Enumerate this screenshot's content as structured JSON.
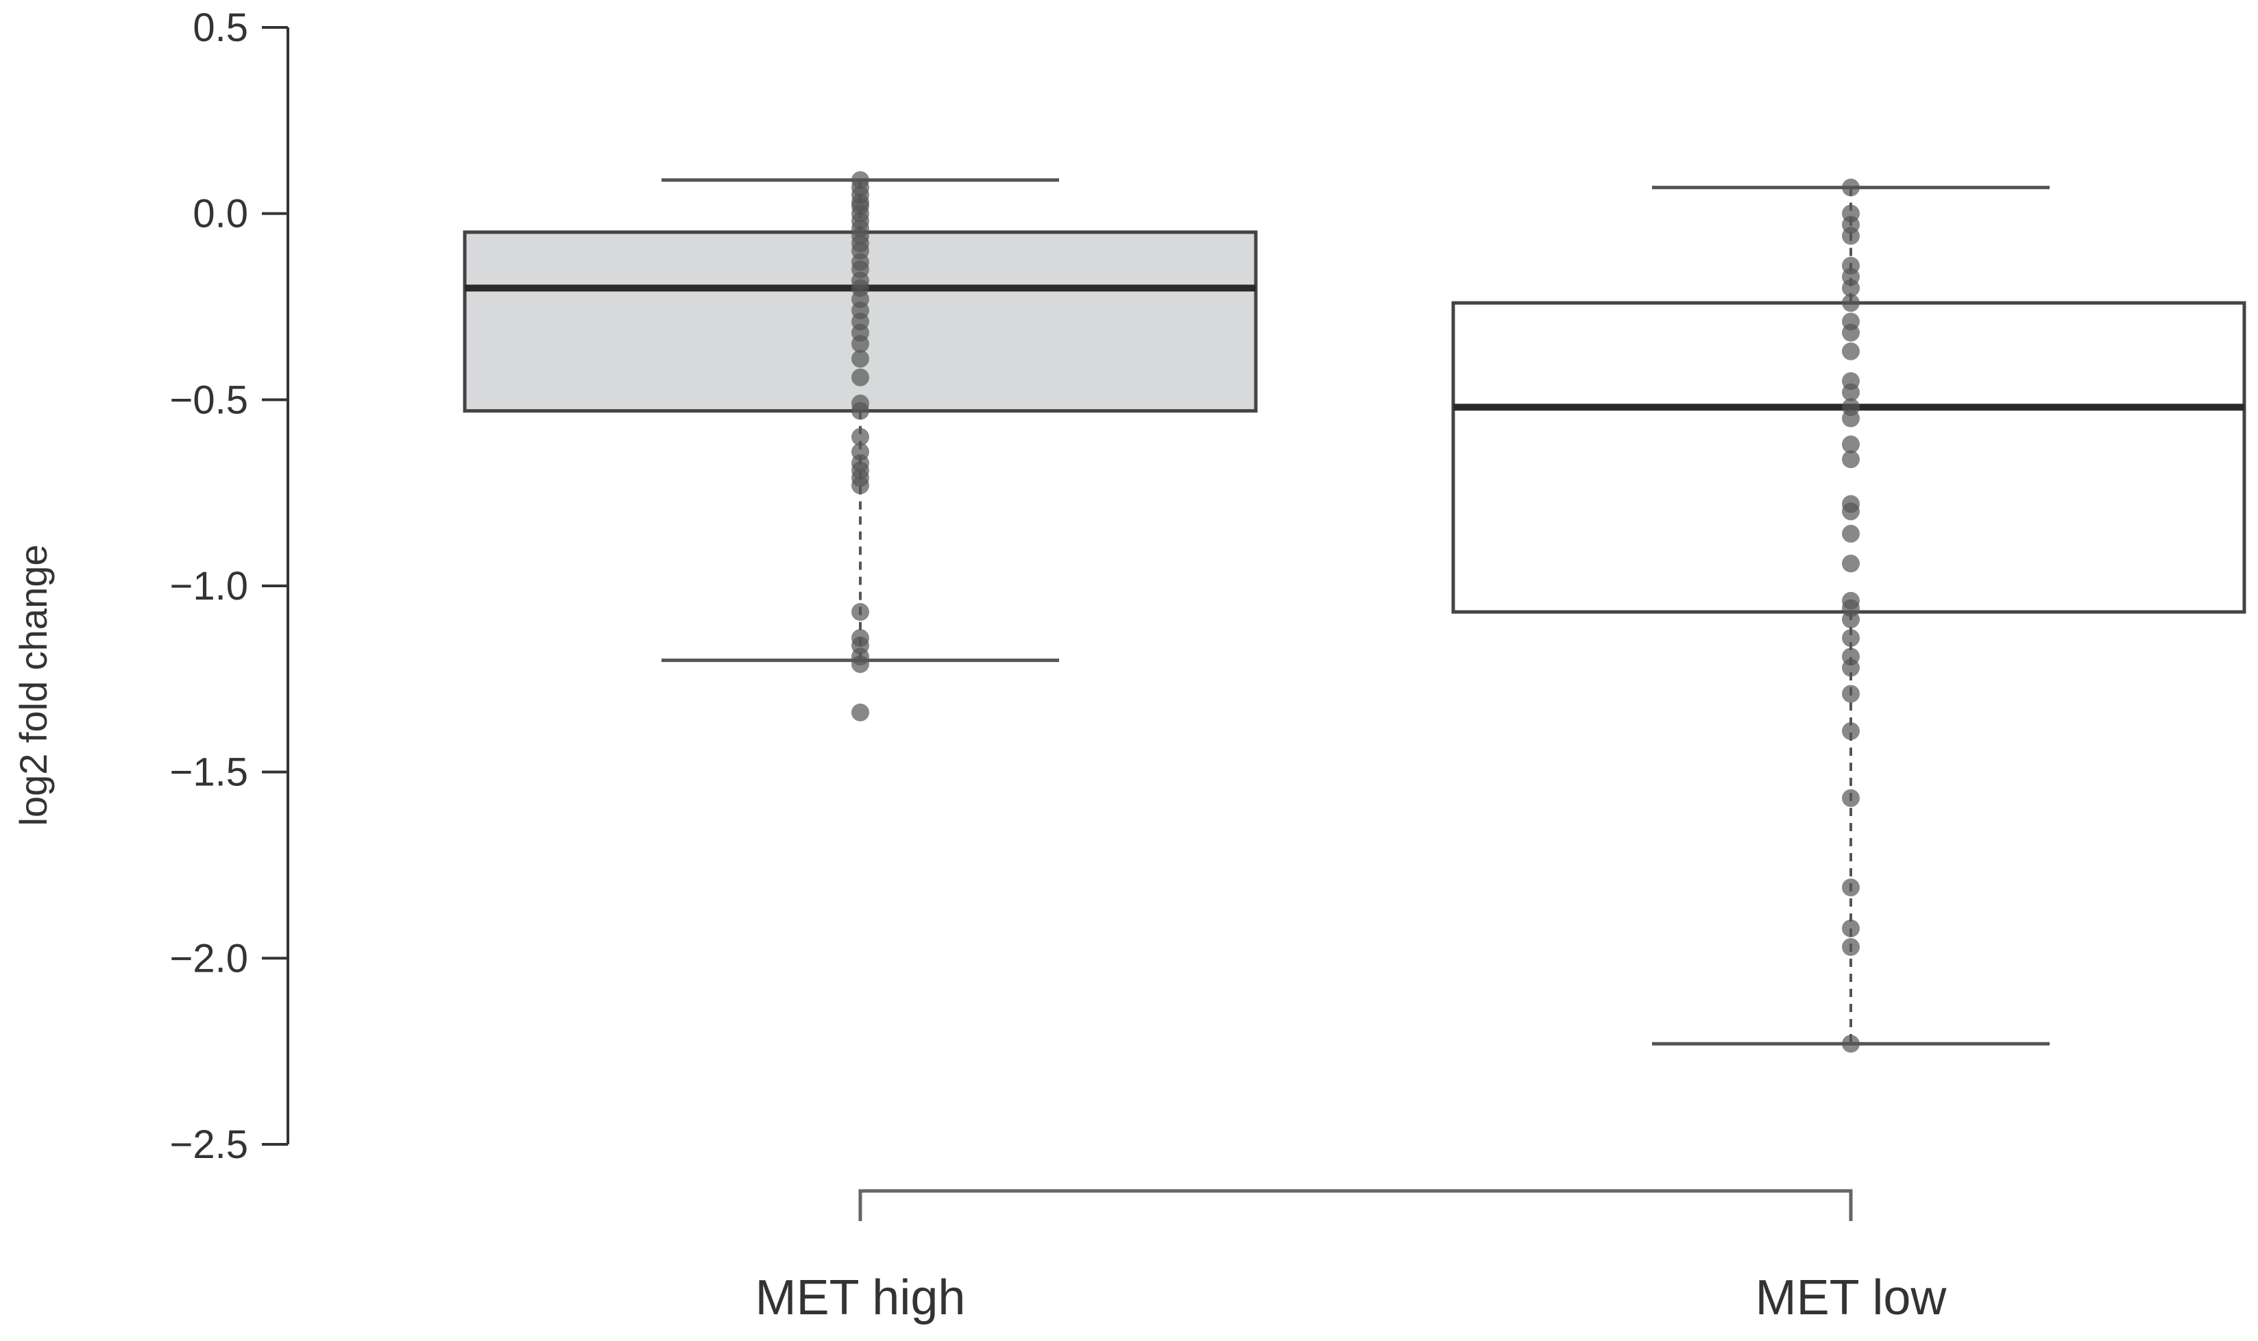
{
  "chart_data": {
    "type": "box",
    "ylabel": "log2 fold change",
    "xlabel": "",
    "ylim": [
      -2.5,
      0.5
    ],
    "yticks": [
      0.5,
      0.0,
      -0.5,
      -1.0,
      -1.5,
      -2.0,
      -2.5
    ],
    "ytick_labels": [
      "0.5",
      "0.0",
      "−0.5",
      "−1.0",
      "−1.5",
      "−2.0",
      "−2.5"
    ],
    "categories": [
      "MET high",
      "MET low"
    ],
    "boxes": [
      {
        "name": "MET high",
        "fill": "#d8d9db",
        "q1": -0.53,
        "median": -0.2,
        "q3": -0.05,
        "whisker_low": -1.2,
        "whisker_high": 0.09,
        "points": [
          0.09,
          0.07,
          0.05,
          0.03,
          0.02,
          0.0,
          -0.02,
          -0.04,
          -0.06,
          -0.08,
          -0.1,
          -0.13,
          -0.15,
          -0.18,
          -0.2,
          -0.23,
          -0.26,
          -0.29,
          -0.32,
          -0.35,
          -0.39,
          -0.44,
          -0.51,
          -0.53,
          -0.6,
          -0.64,
          -0.67,
          -0.69,
          -0.71,
          -0.73,
          -1.07,
          -1.14,
          -1.16,
          -1.19,
          -1.21,
          -1.34
        ]
      },
      {
        "name": "MET low",
        "fill": "#ffffff",
        "q1": -1.07,
        "median": -0.52,
        "q3": -0.24,
        "whisker_low": -2.23,
        "whisker_high": 0.07,
        "points": [
          0.07,
          0.0,
          -0.03,
          -0.06,
          -0.14,
          -0.17,
          -0.2,
          -0.24,
          -0.29,
          -0.32,
          -0.37,
          -0.45,
          -0.48,
          -0.52,
          -0.55,
          -0.62,
          -0.66,
          -0.78,
          -0.8,
          -0.86,
          -0.94,
          -1.04,
          -1.06,
          -1.09,
          -1.14,
          -1.19,
          -1.22,
          -1.29,
          -1.39,
          -1.57,
          -1.81,
          -1.92,
          -1.97,
          -2.23
        ]
      }
    ],
    "bracket": {
      "from": "MET high",
      "to": "MET low"
    },
    "colors": {
      "box_stroke": "#444444",
      "median": "#2a2a2a",
      "whisker": "#555555",
      "point": "#555555",
      "axis": "#333333"
    }
  }
}
